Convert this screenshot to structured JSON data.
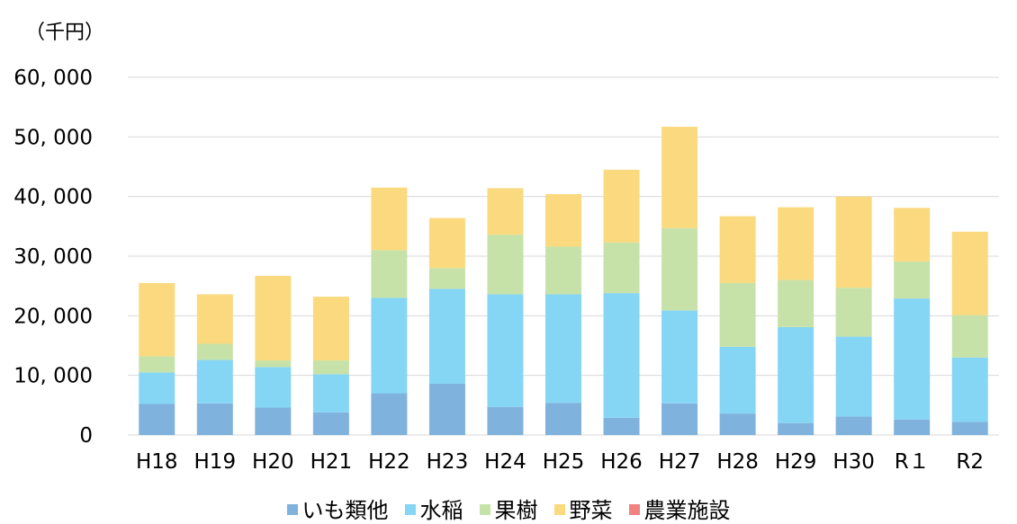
{
  "chart_data": {
    "type": "bar",
    "stacked": true,
    "unit_label": "（千円）",
    "categories": [
      "H18",
      "H19",
      "H20",
      "H21",
      "H22",
      "H23",
      "H24",
      "H25",
      "H26",
      "H27",
      "H28",
      "H29",
      "H30",
      "R1",
      "R2"
    ],
    "category_labels": [
      "H18",
      "H19",
      "H20",
      "H21",
      "H22",
      "H23",
      "H24",
      "H25",
      "H26",
      "H27",
      "H28",
      "H29",
      "H30",
      "R１",
      "R2"
    ],
    "series": [
      {
        "name": "いも類他",
        "color": "#7fb2dc",
        "values": [
          5200,
          5300,
          4600,
          3800,
          7000,
          8600,
          4700,
          5400,
          2900,
          5300,
          3600,
          2000,
          3100,
          2600,
          2200
        ]
      },
      {
        "name": "水稲",
        "color": "#85d5f5",
        "values": [
          5300,
          7300,
          6800,
          6400,
          16000,
          15900,
          18900,
          18200,
          20900,
          15600,
          11200,
          16100,
          13400,
          20300,
          10800
        ]
      },
      {
        "name": "果樹",
        "color": "#c6e2a8",
        "values": [
          2700,
          2700,
          1100,
          2300,
          8000,
          3500,
          10000,
          8000,
          8500,
          13800,
          10700,
          7900,
          8200,
          6200,
          7100
        ]
      },
      {
        "name": "野菜",
        "color": "#fbd97e",
        "values": [
          12300,
          8300,
          14200,
          10700,
          10500,
          8400,
          7800,
          8800,
          12200,
          17000,
          11200,
          12200,
          15300,
          9000,
          14000
        ]
      },
      {
        "name": "農業施設",
        "color": "#f08282",
        "values": [
          0,
          0,
          0,
          0,
          0,
          0,
          0,
          0,
          0,
          0,
          0,
          0,
          0,
          0,
          0
        ]
      }
    ],
    "y_ticks": [
      "0",
      "10, 000",
      "20, 000",
      "30, 000",
      "40, 000",
      "50, 000",
      "60, 000"
    ],
    "ylim": [
      0,
      60000
    ],
    "grid": true,
    "legend_position": "bottom"
  }
}
